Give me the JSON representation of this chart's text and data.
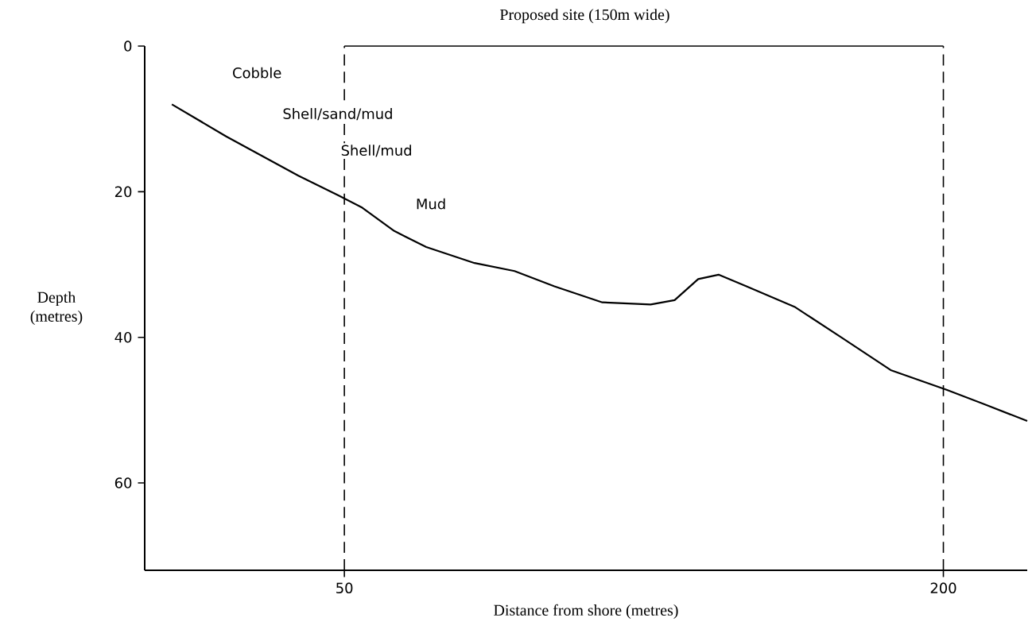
{
  "chart_data": {
    "type": "line",
    "xlabel": "Distance from shore (metres)",
    "ylabel": "Depth (metres)",
    "x": [
      6.8,
      20.4,
      38.5,
      48.5,
      54.5,
      62.5,
      70.5,
      82.6,
      92.6,
      102.6,
      114.6,
      126.7,
      132.7,
      138.6,
      143.7,
      150.7,
      162.7,
      174.7,
      186.8,
      200.8,
      210.8,
      221
    ],
    "series": [
      {
        "color": "#000000",
        "values": [
          8.0,
          12.4,
          17.8,
          20.5,
          22.2,
          25.4,
          27.6,
          29.8,
          30.9,
          33.0,
          35.2,
          35.5,
          34.9,
          32.0,
          31.4,
          33.0,
          35.8,
          40.1,
          44.5,
          47.2,
          49.3,
          51.5
        ]
      }
    ],
    "xlim": [
      0,
      221
    ],
    "ylim": [
      72,
      0
    ],
    "xticks": [
      50,
      200
    ],
    "yticks": [
      0,
      20,
      40,
      60
    ],
    "ref_lines": [
      {
        "axis": "x",
        "value": 50,
        "line_style": "dashed",
        "color": "#000000"
      },
      {
        "axis": "x",
        "value": 200,
        "line_style": "dashed",
        "color": "#000000"
      }
    ],
    "annotations": [
      "Cobble",
      "Shell/sand/mud",
      "Shell/mud",
      "Mud",
      "Proposed site (150m wide)"
    ],
    "marker": "none",
    "line_style": "solid"
  }
}
